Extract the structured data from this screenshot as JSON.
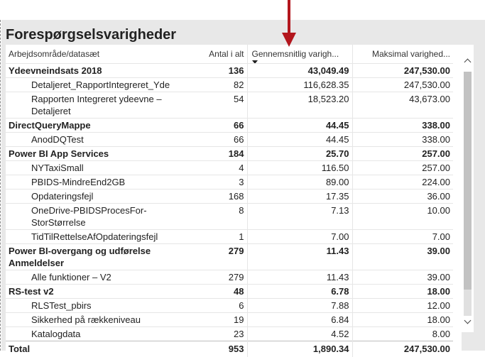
{
  "visual": {
    "title": "Forespørgselsvarigheder"
  },
  "columns": {
    "name": "Arbejdsområde/datasæt",
    "count": "Antal i alt",
    "avg": "Gennemsnitlig varigh...",
    "max": "Maksimal varighed..."
  },
  "rows": [
    {
      "level": "group",
      "name": "Ydeevneindsats 2018",
      "count": "136",
      "avg": "43,049.49",
      "max": "247,530.00"
    },
    {
      "level": "child",
      "name": "Detaljeret_RapportIntegreret_Yde",
      "count": "82",
      "avg": "116,628.35",
      "max": "247,530.00"
    },
    {
      "level": "child",
      "name": "Rapporten Integreret ydeevne – Detaljeret",
      "count": "54",
      "avg": "18,523.20",
      "max": "43,673.00"
    },
    {
      "level": "group",
      "name": "DirectQueryMappe",
      "count": "66",
      "avg": "44.45",
      "max": "338.00"
    },
    {
      "level": "child",
      "name": "AnodDQTest",
      "count": "66",
      "avg": "44.45",
      "max": "338.00"
    },
    {
      "level": "group",
      "name": "Power BI App Services",
      "count": "184",
      "avg": "25.70",
      "max": "257.00"
    },
    {
      "level": "child",
      "name": "NYTaxiSmall",
      "count": "4",
      "avg": "116.50",
      "max": "257.00"
    },
    {
      "level": "child",
      "name": "PBIDS-MindreEnd2GB",
      "count": "3",
      "avg": "89.00",
      "max": "224.00"
    },
    {
      "level": "child",
      "name": "Opdateringsfejl",
      "count": "168",
      "avg": "17.35",
      "max": "36.00"
    },
    {
      "level": "child",
      "name": "OneDrive-PBIDSProcesFor-StorStørrelse",
      "count": "8",
      "avg": "7.13",
      "max": "10.00"
    },
    {
      "level": "child",
      "name": "TidTilRettelseAfOpdateringsfejl",
      "count": "1",
      "avg": "7.00",
      "max": "7.00"
    },
    {
      "level": "group",
      "name": "Power BI-overgang og udførelse Anmeldelser",
      "count": "279",
      "avg": "11.43",
      "max": "39.00"
    },
    {
      "level": "child",
      "name": "Alle funktioner – V2",
      "count": "279",
      "avg": "11.43",
      "max": "39.00"
    },
    {
      "level": "group",
      "name": "RS-test v2",
      "count": "48",
      "avg": "6.78",
      "max": "18.00"
    },
    {
      "level": "child",
      "name": "RLSTest_pbirs",
      "count": "6",
      "avg": "7.88",
      "max": "12.00"
    },
    {
      "level": "child",
      "name": "Sikkerhed på rækkeniveau",
      "count": "19",
      "avg": "6.84",
      "max": "18.00"
    },
    {
      "level": "child",
      "name": "Katalogdata",
      "count": "23",
      "avg": "4.52",
      "max": "8.00"
    }
  ],
  "total": {
    "name": "Total",
    "count": "953",
    "avg": "1,890.34",
    "max": "247,530.00"
  },
  "colors": {
    "annotation_arrow": "#b3161d",
    "scroll_thumb": "#c2c2c2"
  },
  "icons": {
    "sort": "sort-descending-icon",
    "scroll_up": "chevron-up-icon",
    "scroll_down": "chevron-down-icon"
  }
}
